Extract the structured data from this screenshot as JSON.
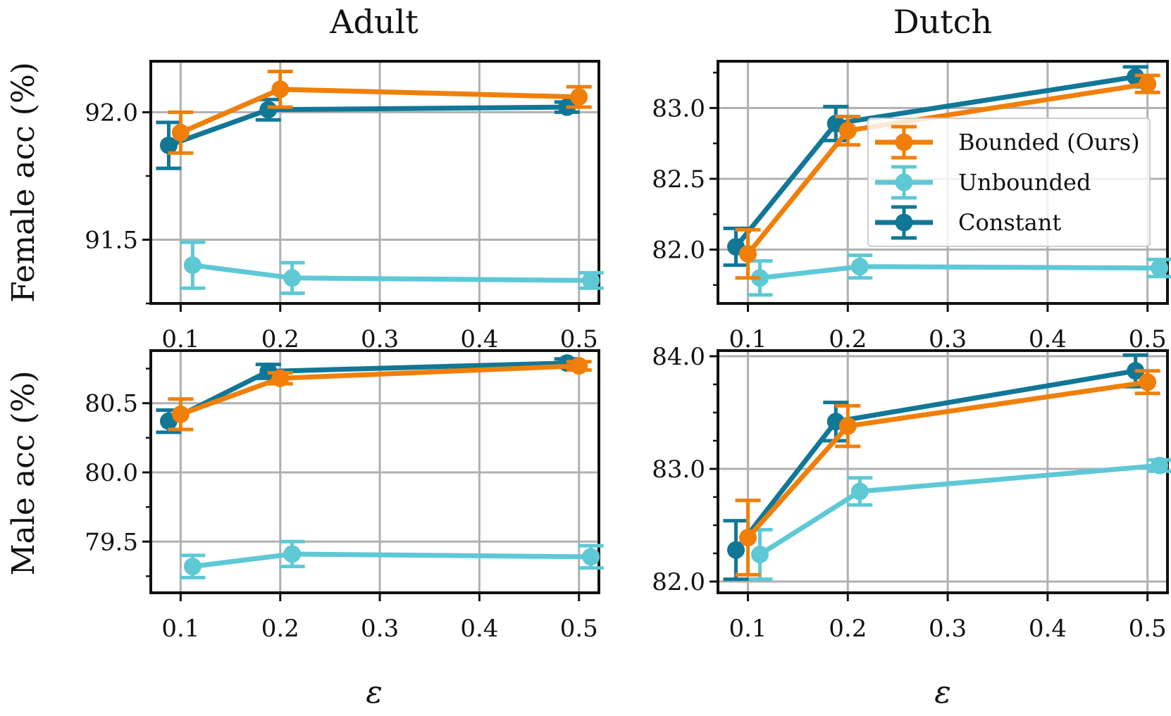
{
  "figure": {
    "col_titles": [
      "Adult",
      "Dutch"
    ],
    "row_labels": [
      "Female acc (%)",
      "Male acc (%)"
    ],
    "xlabel": "ε"
  },
  "colors": {
    "bounded": "#f07f09",
    "unbounded": "#5ec8d5",
    "constant": "#117796"
  },
  "legend": {
    "position": "upper-right of Dutch female panel",
    "entries": [
      {
        "key": "bounded",
        "label": "Bounded (Ours)"
      },
      {
        "key": "unbounded",
        "label": "Unbounded"
      },
      {
        "key": "constant",
        "label": "Constant"
      }
    ]
  },
  "chart_data": [
    {
      "id": "adult-female",
      "type": "line",
      "title": "Adult",
      "ylabel": "Female acc (%)",
      "xlabel": "ε",
      "xlim": [
        0.07,
        0.52
      ],
      "ylim": [
        91.25,
        92.2
      ],
      "xticks": [
        0.1,
        0.2,
        0.3,
        0.4,
        0.5
      ],
      "xtick_labels": [
        "0.1",
        "0.2",
        "0.3",
        "0.4",
        "0.5"
      ],
      "yticks": [
        91.5,
        92.0
      ],
      "ytick_labels": [
        "91.5",
        "92.0"
      ],
      "yminor": [
        91.25,
        91.75
      ],
      "series": [
        {
          "key": "bounded",
          "name": "Bounded (Ours)",
          "x": [
            0.1,
            0.2,
            0.5
          ],
          "y": [
            91.92,
            92.09,
            92.06
          ],
          "err": [
            0.08,
            0.07,
            0.04
          ]
        },
        {
          "key": "unbounded",
          "name": "Unbounded",
          "x": [
            0.1,
            0.2,
            0.5
          ],
          "y": [
            91.4,
            91.35,
            91.34
          ],
          "err": [
            0.09,
            0.06,
            0.03
          ]
        },
        {
          "key": "constant",
          "name": "Constant",
          "x": [
            0.1,
            0.2,
            0.5
          ],
          "y": [
            91.87,
            92.01,
            92.02
          ],
          "err": [
            0.09,
            0.04,
            0.02
          ]
        }
      ]
    },
    {
      "id": "dutch-female",
      "type": "line",
      "title": "Dutch",
      "ylabel": "",
      "xlabel": "ε",
      "xlim": [
        0.07,
        0.52
      ],
      "ylim": [
        81.62,
        83.33
      ],
      "xticks": [
        0.1,
        0.2,
        0.3,
        0.4,
        0.5
      ],
      "xtick_labels": [
        "0.1",
        "0.2",
        "0.3",
        "0.4",
        "0.5"
      ],
      "yticks": [
        82.0,
        82.5,
        83.0
      ],
      "ytick_labels": [
        "82.0",
        "82.5",
        "83.0"
      ],
      "yminor": [
        81.75,
        82.25,
        82.75,
        83.25
      ],
      "series": [
        {
          "key": "bounded",
          "name": "Bounded (Ours)",
          "x": [
            0.1,
            0.2,
            0.5
          ],
          "y": [
            81.97,
            82.84,
            83.17
          ],
          "err": [
            0.17,
            0.1,
            0.06
          ]
        },
        {
          "key": "unbounded",
          "name": "Unbounded",
          "x": [
            0.1,
            0.2,
            0.5
          ],
          "y": [
            81.8,
            81.88,
            81.87
          ],
          "err": [
            0.12,
            0.08,
            0.06
          ]
        },
        {
          "key": "constant",
          "name": "Constant",
          "x": [
            0.1,
            0.2,
            0.5
          ],
          "y": [
            82.02,
            82.89,
            83.22
          ],
          "err": [
            0.13,
            0.12,
            0.07
          ]
        }
      ]
    },
    {
      "id": "adult-male",
      "type": "line",
      "title": "",
      "ylabel": "Male acc (%)",
      "xlabel": "ε",
      "xlim": [
        0.07,
        0.52
      ],
      "ylim": [
        79.13,
        80.88
      ],
      "xticks": [
        0.1,
        0.2,
        0.3,
        0.4,
        0.5
      ],
      "xtick_labels": [
        "0.1",
        "0.2",
        "0.3",
        "0.4",
        "0.5"
      ],
      "yticks": [
        79.5,
        80.0,
        80.5
      ],
      "ytick_labels": [
        "79.5",
        "80.0",
        "80.5"
      ],
      "yminor": [
        79.25,
        79.75,
        80.25,
        80.75
      ],
      "series": [
        {
          "key": "bounded",
          "name": "Bounded (Ours)",
          "x": [
            0.1,
            0.2,
            0.5
          ],
          "y": [
            80.42,
            80.68,
            80.77
          ],
          "err": [
            0.11,
            0.04,
            0.03
          ]
        },
        {
          "key": "unbounded",
          "name": "Unbounded",
          "x": [
            0.1,
            0.2,
            0.5
          ],
          "y": [
            79.32,
            79.41,
            79.39
          ],
          "err": [
            0.08,
            0.09,
            0.08
          ]
        },
        {
          "key": "constant",
          "name": "Constant",
          "x": [
            0.1,
            0.2,
            0.5
          ],
          "y": [
            80.37,
            80.73,
            80.79
          ],
          "err": [
            0.08,
            0.05,
            0.03
          ]
        }
      ]
    },
    {
      "id": "dutch-male",
      "type": "line",
      "title": "",
      "ylabel": "",
      "xlabel": "ε",
      "xlim": [
        0.07,
        0.52
      ],
      "ylim": [
        81.9,
        84.05
      ],
      "xticks": [
        0.1,
        0.2,
        0.3,
        0.4,
        0.5
      ],
      "xtick_labels": [
        "0.1",
        "0.2",
        "0.3",
        "0.4",
        "0.5"
      ],
      "yticks": [
        82.0,
        83.0,
        84.0
      ],
      "ytick_labels": [
        "82.0",
        "83.0",
        "84.0"
      ],
      "yminor": [
        82.25,
        82.5,
        82.75,
        83.25,
        83.5,
        83.75
      ],
      "series": [
        {
          "key": "bounded",
          "name": "Bounded (Ours)",
          "x": [
            0.1,
            0.2,
            0.5
          ],
          "y": [
            82.39,
            83.38,
            83.77
          ],
          "err": [
            0.33,
            0.18,
            0.1
          ]
        },
        {
          "key": "unbounded",
          "name": "Unbounded",
          "x": [
            0.1,
            0.2,
            0.5
          ],
          "y": [
            82.24,
            82.8,
            83.03
          ],
          "err": [
            0.22,
            0.12,
            0.05
          ]
        },
        {
          "key": "constant",
          "name": "Constant",
          "x": [
            0.1,
            0.2,
            0.5
          ],
          "y": [
            82.28,
            83.42,
            83.87
          ],
          "err": [
            0.26,
            0.17,
            0.14
          ]
        }
      ]
    }
  ]
}
